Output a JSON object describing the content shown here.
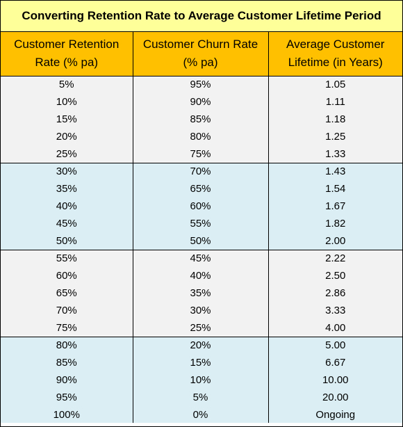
{
  "title": "Converting Retention Rate to Average Customer Lifetime Period",
  "colors": {
    "title_bg": "#ffff99",
    "header_bg": "#ffc000",
    "band_gray": "#f2f2f2",
    "band_blue": "#daeef3"
  },
  "columns": [
    {
      "line1": "Customer Retention",
      "line2": "Rate (% pa)"
    },
    {
      "line1": "Customer Churn Rate",
      "line2": "(% pa)"
    },
    {
      "line1": "Average Customer",
      "line2": "Lifetime (in Years)"
    }
  ],
  "rows": [
    {
      "retention": "5%",
      "churn": "95%",
      "lifetime": "1.05"
    },
    {
      "retention": "10%",
      "churn": "90%",
      "lifetime": "1.11"
    },
    {
      "retention": "15%",
      "churn": "85%",
      "lifetime": "1.18"
    },
    {
      "retention": "20%",
      "churn": "80%",
      "lifetime": "1.25"
    },
    {
      "retention": "25%",
      "churn": "75%",
      "lifetime": "1.33"
    },
    {
      "retention": "30%",
      "churn": "70%",
      "lifetime": "1.43"
    },
    {
      "retention": "35%",
      "churn": "65%",
      "lifetime": "1.54"
    },
    {
      "retention": "40%",
      "churn": "60%",
      "lifetime": "1.67"
    },
    {
      "retention": "45%",
      "churn": "55%",
      "lifetime": "1.82"
    },
    {
      "retention": "50%",
      "churn": "50%",
      "lifetime": "2.00"
    },
    {
      "retention": "55%",
      "churn": "45%",
      "lifetime": "2.22"
    },
    {
      "retention": "60%",
      "churn": "40%",
      "lifetime": "2.50"
    },
    {
      "retention": "65%",
      "churn": "35%",
      "lifetime": "2.86"
    },
    {
      "retention": "70%",
      "churn": "30%",
      "lifetime": "3.33"
    },
    {
      "retention": "75%",
      "churn": "25%",
      "lifetime": "4.00"
    },
    {
      "retention": "80%",
      "churn": "20%",
      "lifetime": "5.00"
    },
    {
      "retention": "85%",
      "churn": "15%",
      "lifetime": "6.67"
    },
    {
      "retention": "90%",
      "churn": "10%",
      "lifetime": "10.00"
    },
    {
      "retention": "95%",
      "churn": "5%",
      "lifetime": "20.00"
    },
    {
      "retention": "100%",
      "churn": "0%",
      "lifetime": "Ongoing"
    }
  ]
}
